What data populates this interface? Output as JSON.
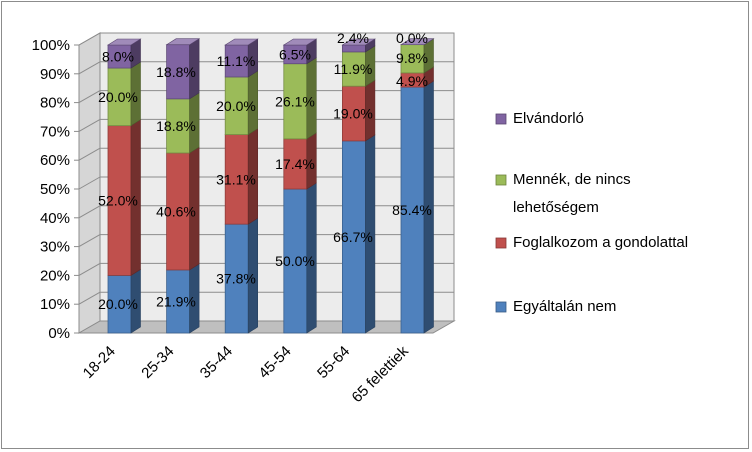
{
  "chart_data": {
    "type": "bar",
    "stacked": true,
    "percent_stacked": true,
    "three_d": true,
    "categories": [
      "18-24",
      "25-34",
      "35-44",
      "45-54",
      "55-64",
      "65 felettiek"
    ],
    "series": [
      {
        "name": "Egyáltalán nem",
        "color": "#4f81bd",
        "values": [
          20.0,
          21.9,
          37.8,
          50.0,
          66.7,
          85.4
        ],
        "labels": [
          "20.0%",
          "21.9%",
          "37.8%",
          "50.0%",
          "66.7%",
          "85.4%"
        ]
      },
      {
        "name": "Foglalkozom a gondolattal",
        "color": "#c0504d",
        "values": [
          52.0,
          40.6,
          31.1,
          17.4,
          19.0,
          4.9
        ],
        "labels": [
          "52.0%",
          "40.6%",
          "31.1%",
          "17.4%",
          "19.0%",
          "4.9%"
        ]
      },
      {
        "name": "Mennék, de nincs lehetőségem",
        "color": "#9bbb59",
        "values": [
          20.0,
          18.8,
          20.0,
          26.1,
          11.9,
          9.8
        ],
        "labels": [
          "20.0%",
          "18.8%",
          "20.0%",
          "26.1%",
          "11.9%",
          "9.8%"
        ]
      },
      {
        "name": "Elvándorló",
        "color": "#8064a2",
        "values": [
          8.0,
          18.8,
          11.1,
          6.5,
          2.4,
          0.0
        ],
        "labels": [
          "8.0%",
          "18.8%",
          "11.1%",
          "6.5%",
          "2.4%",
          "0.0%"
        ]
      }
    ],
    "y_axis": {
      "ticks": [
        "0%",
        "10%",
        "20%",
        "30%",
        "40%",
        "50%",
        "60%",
        "70%",
        "80%",
        "90%",
        "100%"
      ],
      "ylim": [
        0,
        100
      ]
    },
    "title": "",
    "xlabel": "",
    "ylabel": "",
    "grid": "horizontal",
    "legend": {
      "position": "right",
      "order": [
        "Elvándorló",
        "Mennék, de nincs lehetőségem",
        "Foglalkozom a gondolattal",
        "Egyáltalán nem"
      ]
    }
  }
}
